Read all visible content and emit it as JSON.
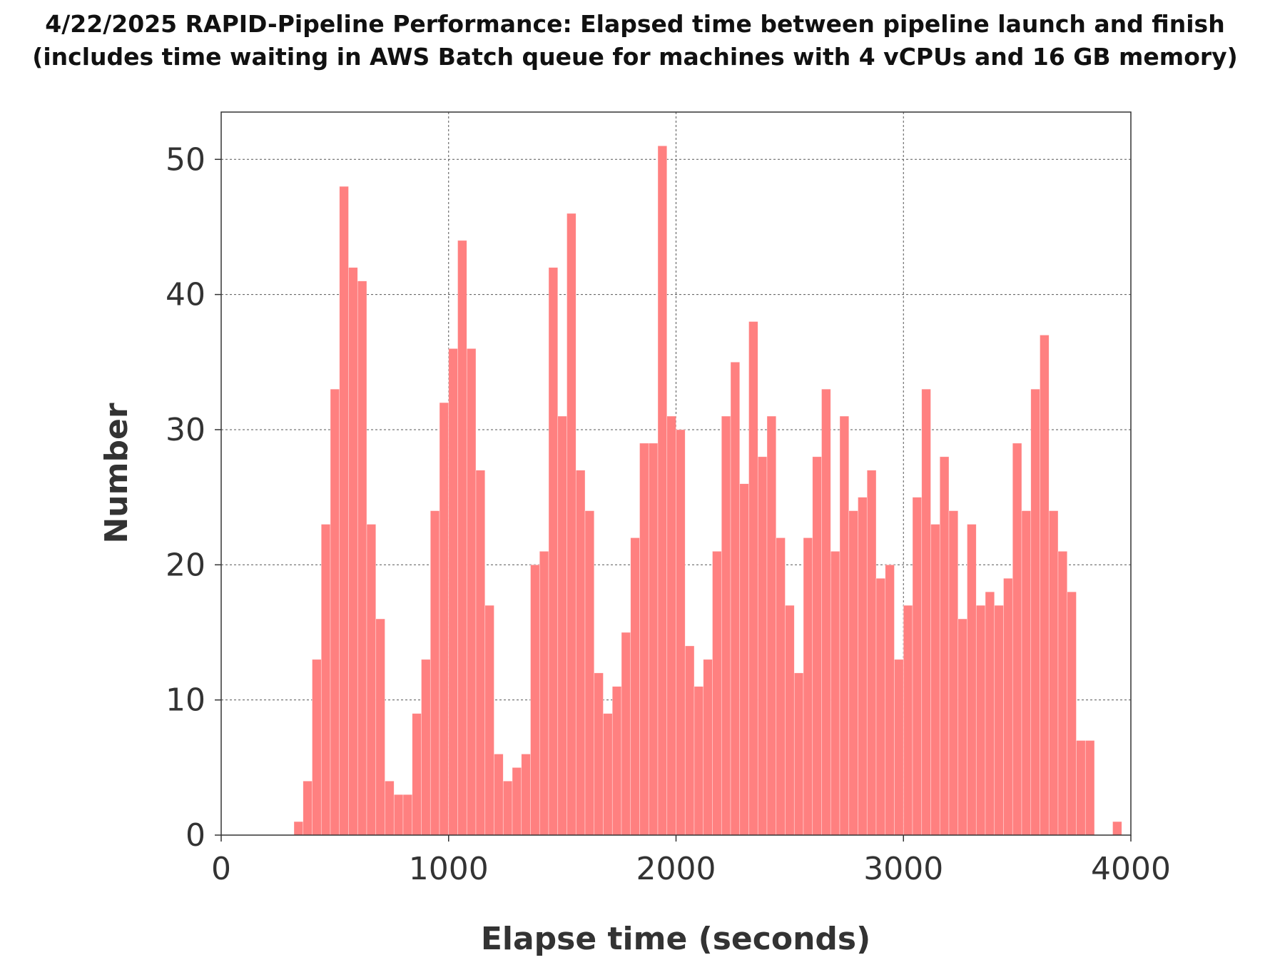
{
  "chart_data": {
    "type": "bar",
    "title": "4/22/2025  RAPID-Pipeline Performance: Elapsed time between pipeline launch and finish",
    "subtitle": "(includes time waiting in AWS Batch queue for machines with 4 vCPUs and 16 GB memory)",
    "xlabel": "Elapse time (seconds)",
    "ylabel": "Number",
    "xlim": [
      0,
      4000
    ],
    "ylim": [
      0,
      53.5
    ],
    "xticks": [
      "0",
      "1000",
      "2000",
      "3000",
      "4000"
    ],
    "yticks": [
      "0",
      "10",
      "20",
      "30",
      "40",
      "50"
    ],
    "grid": true,
    "bar_color": "#FF8080",
    "bin_width": 40,
    "bin_starts": [
      320,
      360,
      400,
      440,
      480,
      520,
      560,
      600,
      640,
      680,
      720,
      760,
      800,
      840,
      880,
      920,
      960,
      1000,
      1040,
      1080,
      1120,
      1160,
      1200,
      1240,
      1280,
      1320,
      1360,
      1400,
      1440,
      1480,
      1520,
      1560,
      1600,
      1640,
      1680,
      1720,
      1760,
      1800,
      1840,
      1880,
      1920,
      1960,
      2000,
      2040,
      2080,
      2120,
      2160,
      2200,
      2240,
      2280,
      2320,
      2360,
      2400,
      2440,
      2480,
      2520,
      2560,
      2600,
      2640,
      2680,
      2720,
      2760,
      2800,
      2840,
      2880,
      2920,
      2960,
      3000,
      3040,
      3080,
      3120,
      3160,
      3200,
      3240,
      3280,
      3320,
      3360,
      3400,
      3440,
      3480,
      3520,
      3560,
      3600,
      3640,
      3680,
      3720,
      3760,
      3800,
      3840,
      3880,
      3920
    ],
    "values": [
      1,
      4,
      13,
      23,
      33,
      48,
      42,
      41,
      23,
      16,
      4,
      3,
      3,
      9,
      13,
      24,
      32,
      36,
      44,
      36,
      27,
      17,
      6,
      4,
      5,
      6,
      20,
      21,
      42,
      31,
      46,
      27,
      24,
      12,
      9,
      11,
      15,
      22,
      29,
      29,
      51,
      31,
      30,
      14,
      11,
      13,
      21,
      31,
      35,
      26,
      38,
      28,
      31,
      22,
      17,
      12,
      22,
      28,
      33,
      21,
      31,
      24,
      25,
      27,
      19,
      20,
      13,
      17,
      25,
      33,
      23,
      28,
      24,
      16,
      23,
      17,
      18,
      17,
      19,
      29,
      24,
      33,
      37,
      24,
      21,
      18,
      7,
      7,
      0,
      0,
      1
    ]
  }
}
